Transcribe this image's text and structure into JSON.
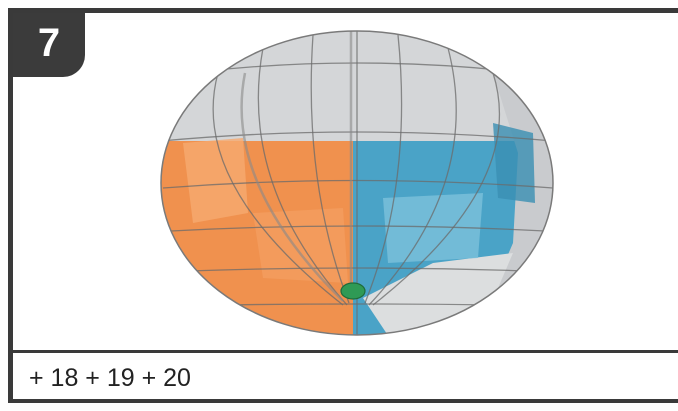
{
  "step": {
    "number": "7"
  },
  "instruction": {
    "parts_text": "+ 18 + 19 + 20"
  },
  "colors": {
    "frame": "#3a3a3a",
    "orange": "#f0914e",
    "blue": "#4aa3c7",
    "grey": "#d2d4d6",
    "knob": "#2f9a55"
  },
  "illustration": {
    "subject": "segmented-sphere-model",
    "icon": "assembled-model-icon"
  }
}
